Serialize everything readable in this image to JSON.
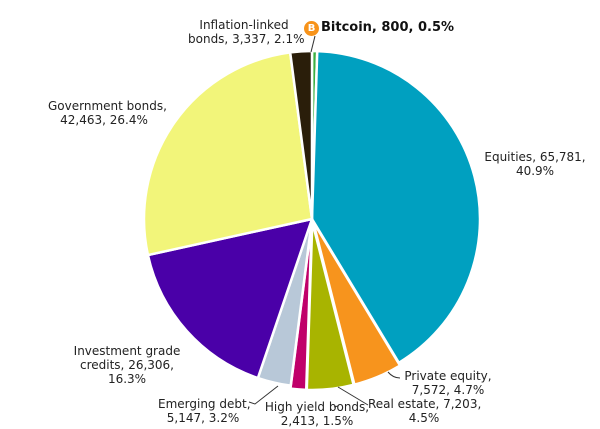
{
  "chart_data": {
    "type": "pie",
    "title": "",
    "start_angle_deg": 0,
    "direction": "clockwise",
    "slices": [
      {
        "label": "Bitcoin",
        "value": 800,
        "percent": 0.5,
        "color": "#3cb043",
        "text": "Bitcoin, 800, 0.5%"
      },
      {
        "label": "Equities",
        "value": 65781,
        "percent": 40.9,
        "color": "#00a0c0",
        "text": "Equities, 65,781, 40.9%"
      },
      {
        "label": "Private equity",
        "value": 7572,
        "percent": 4.7,
        "color": "#f7941d",
        "text": "Private equity, 7,572, 4.7%"
      },
      {
        "label": "Real estate",
        "value": 7203,
        "percent": 4.5,
        "color": "#a8b400",
        "text": "Real estate, 7,203, 4.5%"
      },
      {
        "label": "High yield bonds",
        "value": 2413,
        "percent": 1.5,
        "color": "#c0006a",
        "text": "High yield bonds, 2,413, 1.5%"
      },
      {
        "label": "Emerging debt",
        "value": 5147,
        "percent": 3.2,
        "color": "#b8c8d8",
        "text": "Emerging debt, 5,147, 3.2%"
      },
      {
        "label": "Investment grade credits",
        "value": 26306,
        "percent": 16.3,
        "color": "#4a00a8",
        "text": "Investment grade credits, 26,306, 16.3%"
      },
      {
        "label": "Government bonds",
        "value": 42463,
        "percent": 26.4,
        "color": "#f2f57a",
        "text": "Government bonds, 42,463, 26.4%"
      },
      {
        "label": "Inflation-linked bonds",
        "value": 3337,
        "percent": 2.1,
        "color": "#2a1e0a",
        "text": "Inflation-linked bonds, 3,337, 2.1%"
      }
    ],
    "legend": "none (data labels)"
  },
  "labels": {
    "bitcoin": "Bitcoin, 800, 0.5%",
    "bitcoin_icon": "B",
    "inflation_1": "Inflation-linked",
    "inflation_2": "bonds, 3,337, 2.1%",
    "government_1": "Government bonds,",
    "government_2": "42,463, 26.4%",
    "equities_1": "Equities, 65,781,",
    "equities_2": "40.9%",
    "investment_1": "Investment grade",
    "investment_2": "credits, 26,306,",
    "investment_3": "16.3%",
    "emerging_1": "Emerging debt,",
    "emerging_2": "5,147, 3.2%",
    "highyield_1": "High yield bonds,",
    "highyield_2": "2,413, 1.5%",
    "realestate_1": "Real estate, 7,203,",
    "realestate_2": "4.5%",
    "private_1": "Private equity,",
    "private_2": "7,572, 4.7%"
  }
}
